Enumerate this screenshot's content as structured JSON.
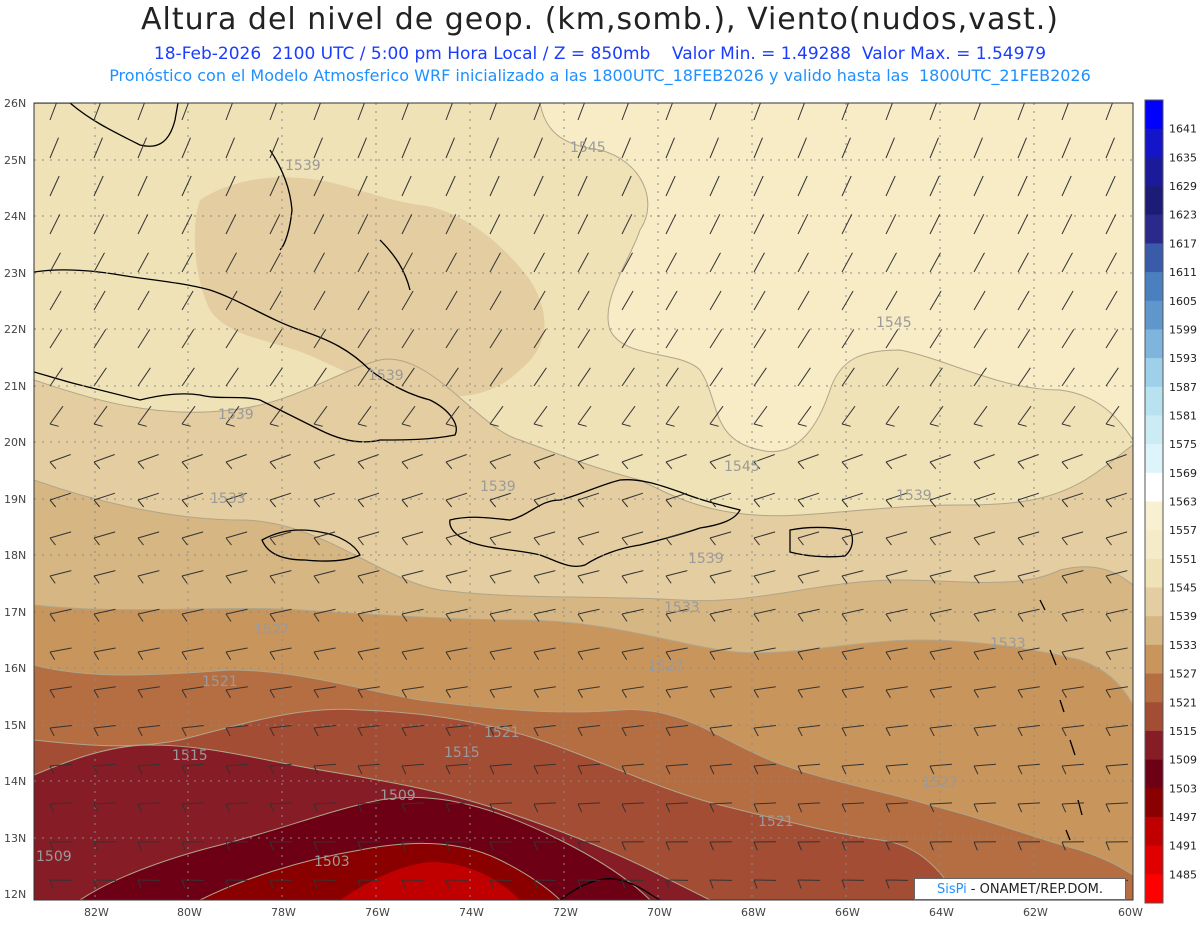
{
  "header": {
    "title": "Altura del nivel de geop. (km,somb.), Viento(nudos,vast.)",
    "line1": "18-Feb-2026  2100 UTC / 5:00 pm Hora Local / Z = 850mb    Valor Min. = 1.49288  Valor Max. = 1.54979",
    "line2": "Pronóstico con el Modelo Atmosferico WRF inicializado a las 1800UTC_18FEB2026 y valido hasta las  1800UTC_21FEB2026"
  },
  "axes": {
    "lat_labels": [
      "26N",
      "25N",
      "24N",
      "23N",
      "22N",
      "21N",
      "20N",
      "19N",
      "18N",
      "17N",
      "16N",
      "15N",
      "14N",
      "13N",
      "12N"
    ],
    "lon_labels": [
      "82W",
      "80W",
      "78W",
      "76W",
      "74W",
      "72W",
      "70W",
      "68W",
      "66W",
      "64W",
      "62W",
      "60W"
    ]
  },
  "colorbar": {
    "levels": [
      "1641",
      "1635",
      "1629",
      "1623",
      "1617",
      "1611",
      "1605",
      "1599",
      "1593",
      "1587",
      "1581",
      "1575",
      "1569",
      "1563",
      "1557",
      "1551",
      "1545",
      "1539",
      "1533",
      "1527",
      "1521",
      "1515",
      "1509",
      "1503",
      "1497",
      "1491",
      "1485"
    ],
    "colors": [
      "#0000ff",
      "#1414c8",
      "#1a1a9a",
      "#1c1c78",
      "#2a2a8c",
      "#3a5aaa",
      "#4a7fc0",
      "#5f96cc",
      "#7fb4dd",
      "#9fd0ea",
      "#b8e2f0",
      "#cbecf5",
      "#ddf4fa",
      "#ffffff",
      "#f8f0d0",
      "#f5ebc8",
      "#efe2b6",
      "#e4cda0",
      "#d6b683",
      "#c8955c",
      "#b56e42",
      "#a44d35",
      "#861c26",
      "#6e0016",
      "#8a0000",
      "#c00000",
      "#e00000",
      "#ff0000"
    ]
  },
  "contour_labels": [
    "1545",
    "1539",
    "1545",
    "1545",
    "1539",
    "1539",
    "1539",
    "1539",
    "1539",
    "1533",
    "1533",
    "1533",
    "1527",
    "1527",
    "1527",
    "1521",
    "1521",
    "1521",
    "1515",
    "1515",
    "1509",
    "1509",
    "1503"
  ],
  "credit": {
    "brand": "SisPi",
    "text": "- ONAMET/REP.DOM."
  }
}
